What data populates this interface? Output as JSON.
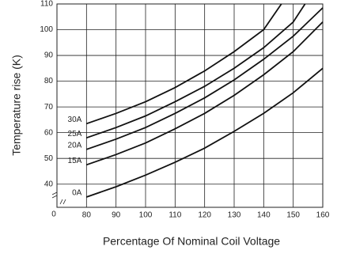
{
  "chart_data": {
    "type": "line",
    "y_axis_label": "Temperature rise (K)",
    "x_axis_label": "Percentage Of Nominal Coil Voltage",
    "origin_label": "0",
    "xlim": [
      70,
      160
    ],
    "xticks": [
      80,
      90,
      100,
      110,
      120,
      130,
      140,
      150,
      160
    ],
    "ylim": [
      31,
      110
    ],
    "yticks": [
      40,
      50,
      60,
      70,
      80,
      90,
      100,
      110
    ],
    "grid": true,
    "series": [
      {
        "name": "30A",
        "color": "#111111",
        "x": [
          80,
          90,
          100,
          110,
          120,
          130,
          140,
          146
        ],
        "values": [
          63.5,
          67.5,
          72,
          77.5,
          84,
          91.5,
          100,
          110
        ]
      },
      {
        "name": "25A",
        "color": "#111111",
        "x": [
          80,
          90,
          100,
          110,
          120,
          130,
          140,
          150,
          154
        ],
        "values": [
          58,
          62,
          66.5,
          72,
          78,
          85,
          93,
          103,
          110
        ]
      },
      {
        "name": "20A",
        "color": "#111111",
        "x": [
          80,
          90,
          100,
          110,
          120,
          130,
          140,
          150,
          160
        ],
        "values": [
          53.5,
          57.5,
          62,
          67.5,
          73.5,
          80.5,
          88.5,
          97.5,
          108.5
        ]
      },
      {
        "name": "15A",
        "color": "#111111",
        "x": [
          80,
          90,
          100,
          110,
          120,
          130,
          140,
          150,
          160
        ],
        "values": [
          47.5,
          51.5,
          56,
          61.5,
          67.5,
          74.5,
          82.5,
          91.5,
          103
        ]
      },
      {
        "name": "0A",
        "color": "#111111",
        "x": [
          80,
          90,
          100,
          110,
          120,
          130,
          140,
          150,
          160
        ],
        "values": [
          35,
          39,
          43.5,
          48.5,
          54,
          60.5,
          67.5,
          75.5,
          85
        ]
      }
    ]
  }
}
